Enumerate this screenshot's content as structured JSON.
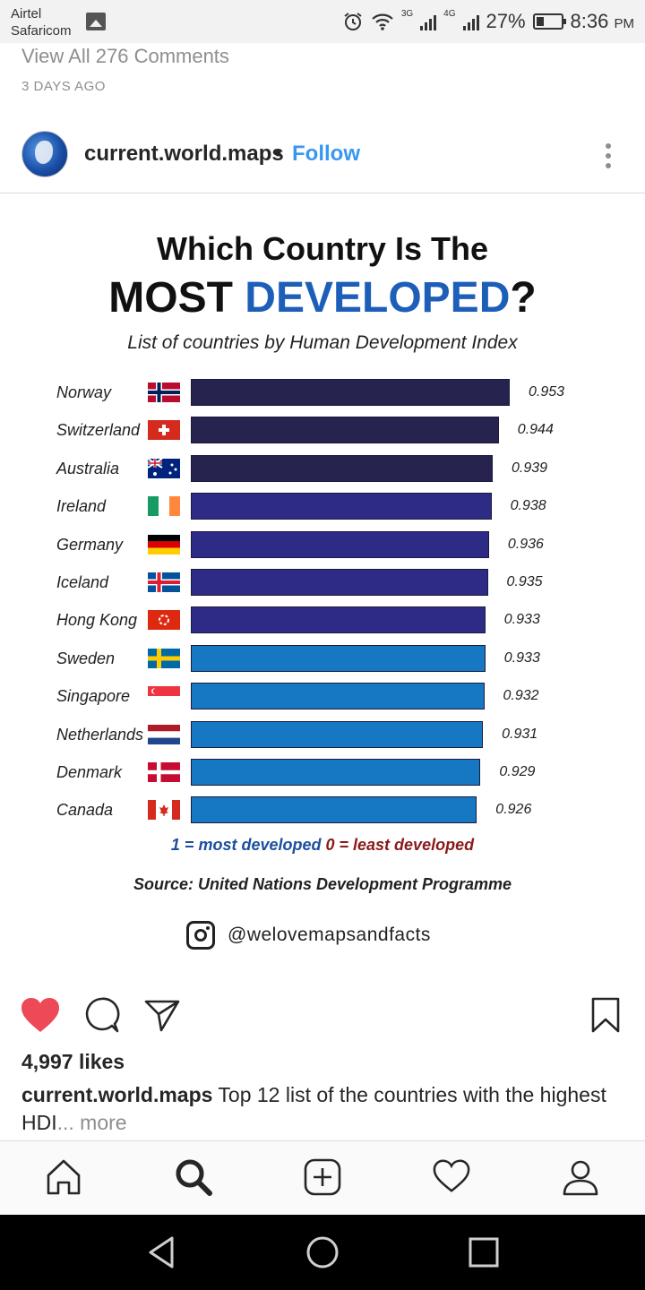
{
  "status_bar": {
    "carrier_line1": "Airtel",
    "carrier_line2": "Safaricom",
    "network_1": "3G",
    "network_2": "4G",
    "battery": "27%",
    "time": "8:36",
    "time_suffix": "PM"
  },
  "comments": {
    "view_all": "View All 276 Comments",
    "posted": "3 DAYS AGO"
  },
  "post": {
    "username": "current.world.maps",
    "separator": "•",
    "follow_label": "Follow"
  },
  "infographic": {
    "title_line1": "Which Country Is The",
    "title_most": "MOST",
    "title_developed": "DEVELOPED",
    "title_q": "?",
    "subtitle": "List of countries by Human Development Index",
    "legend_most": "1 = most developed",
    "legend_least": "0 = least developed",
    "source": "Source: United Nations Development Programme",
    "handle": "@welovemapsandfacts",
    "colors": {
      "dark": "#26234f",
      "mid": "#2e2b86",
      "light": "#1677c2"
    }
  },
  "chart_data": {
    "type": "bar",
    "orientation": "horizontal",
    "title": "Which Country Is The MOST DEVELOPED?",
    "subtitle": "List of countries by Human Development Index",
    "categories": [
      "Norway",
      "Switzerland",
      "Australia",
      "Ireland",
      "Germany",
      "Iceland",
      "Hong Kong",
      "Sweden",
      "Singapore",
      "Netherlands",
      "Denmark",
      "Canada"
    ],
    "values": [
      0.953,
      0.944,
      0.939,
      0.938,
      0.936,
      0.935,
      0.933,
      0.933,
      0.932,
      0.931,
      0.929,
      0.926
    ],
    "labels": [
      "0.953",
      "0.944",
      "0.939",
      "0.938",
      "0.936",
      "0.935",
      "0.933",
      "0.933",
      "0.932",
      "0.931",
      "0.929",
      "0.926"
    ],
    "bar_color_groups": [
      "dark",
      "dark",
      "dark",
      "mid",
      "mid",
      "mid",
      "mid",
      "light",
      "light",
      "light",
      "light",
      "light"
    ],
    "flag_icons": [
      "norway-flag-icon",
      "switzerland-flag-icon",
      "australia-flag-icon",
      "ireland-flag-icon",
      "germany-flag-icon",
      "iceland-flag-icon",
      "hong-kong-flag-icon",
      "sweden-flag-icon",
      "singapore-flag-icon",
      "netherlands-flag-icon",
      "denmark-flag-icon",
      "canada-flag-icon"
    ],
    "grid": false
  },
  "engagement": {
    "likes": "4,997 likes",
    "caption_user": "current.world.maps",
    "caption_text": " Top 12 list of the countries with the highest HDI",
    "caption_more": "... more"
  },
  "icons": {
    "actions": [
      "heart-filled-icon",
      "comment-icon",
      "share-icon",
      "bookmark-icon"
    ],
    "bottom_nav": [
      "home-icon",
      "search-icon",
      "add-post-icon",
      "activity-heart-icon",
      "profile-icon"
    ],
    "system_nav": [
      "back-icon",
      "home-circle-icon",
      "recents-icon"
    ],
    "like_color": "#ed4956"
  }
}
